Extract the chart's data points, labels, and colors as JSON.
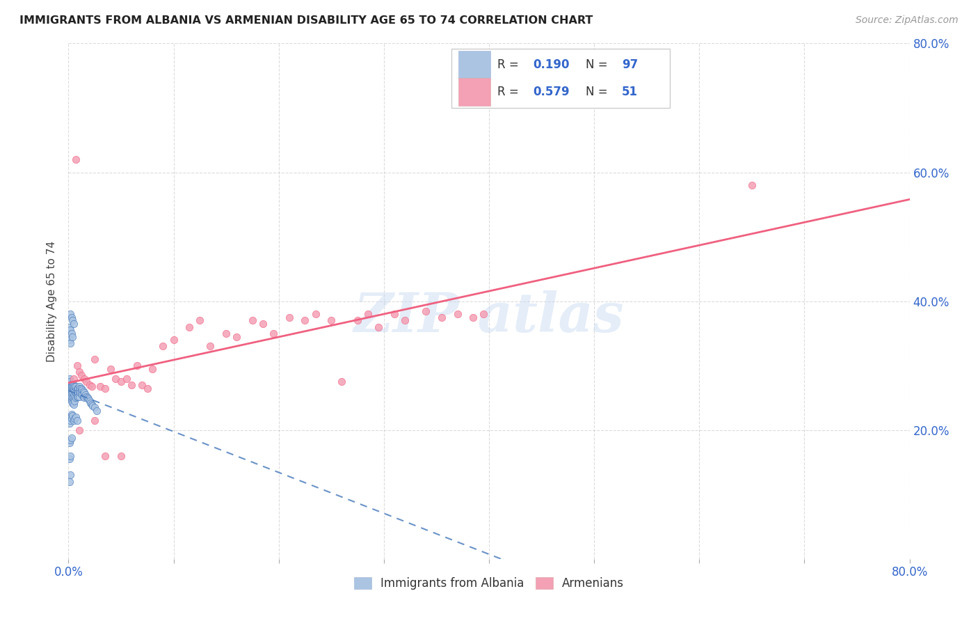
{
  "title": "IMMIGRANTS FROM ALBANIA VS ARMENIAN DISABILITY AGE 65 TO 74 CORRELATION CHART",
  "source": "Source: ZipAtlas.com",
  "ylabel": "Disability Age 65 to 74",
  "xlim": [
    0.0,
    0.8
  ],
  "ylim": [
    0.0,
    0.8
  ],
  "xtick_vals": [
    0.0,
    0.1,
    0.2,
    0.3,
    0.4,
    0.5,
    0.6,
    0.7,
    0.8
  ],
  "xtick_labels_show": {
    "0.0": "0.0%",
    "0.8": "80.0%"
  },
  "ytick_vals": [
    0.2,
    0.4,
    0.6,
    0.8
  ],
  "ytick_labels": [
    "20.0%",
    "40.0%",
    "60.0%",
    "80.0%"
  ],
  "albania_color": "#aac4e2",
  "armenian_color": "#f4a0b5",
  "albania_line_color": "#4477bb",
  "armenian_line_color": "#f06080",
  "tick_label_color": "#3366cc",
  "albania_R": 0.19,
  "albania_N": 97,
  "armenian_R": 0.579,
  "armenian_N": 51,
  "background_color": "#ffffff",
  "grid_color": "#cccccc",
  "albania_x": [
    0.001,
    0.001,
    0.001,
    0.001,
    0.001,
    0.002,
    0.002,
    0.002,
    0.002,
    0.002,
    0.002,
    0.002,
    0.002,
    0.003,
    0.003,
    0.003,
    0.003,
    0.003,
    0.003,
    0.003,
    0.004,
    0.004,
    0.004,
    0.004,
    0.004,
    0.004,
    0.005,
    0.005,
    0.005,
    0.005,
    0.005,
    0.005,
    0.006,
    0.006,
    0.006,
    0.006,
    0.006,
    0.007,
    0.007,
    0.007,
    0.007,
    0.008,
    0.008,
    0.008,
    0.009,
    0.009,
    0.009,
    0.01,
    0.01,
    0.01,
    0.011,
    0.011,
    0.012,
    0.012,
    0.013,
    0.013,
    0.014,
    0.014,
    0.015,
    0.015,
    0.016,
    0.017,
    0.018,
    0.019,
    0.02,
    0.021,
    0.022,
    0.023,
    0.025,
    0.027,
    0.001,
    0.001,
    0.002,
    0.002,
    0.002,
    0.003,
    0.003,
    0.004,
    0.004,
    0.005,
    0.001,
    0.002,
    0.002,
    0.003,
    0.003,
    0.004,
    0.005,
    0.006,
    0.007,
    0.008,
    0.001,
    0.002,
    0.003,
    0.001,
    0.002,
    0.001,
    0.002
  ],
  "albania_y": [
    0.27,
    0.275,
    0.265,
    0.26,
    0.28,
    0.272,
    0.268,
    0.265,
    0.258,
    0.275,
    0.262,
    0.258,
    0.25,
    0.27,
    0.268,
    0.262,
    0.255,
    0.248,
    0.26,
    0.245,
    0.272,
    0.265,
    0.258,
    0.25,
    0.242,
    0.268,
    0.27,
    0.262,
    0.255,
    0.248,
    0.24,
    0.265,
    0.268,
    0.26,
    0.252,
    0.245,
    0.268,
    0.265,
    0.258,
    0.25,
    0.268,
    0.265,
    0.258,
    0.252,
    0.265,
    0.258,
    0.252,
    0.268,
    0.26,
    0.252,
    0.265,
    0.258,
    0.265,
    0.258,
    0.262,
    0.255,
    0.26,
    0.252,
    0.258,
    0.25,
    0.255,
    0.252,
    0.25,
    0.248,
    0.245,
    0.242,
    0.24,
    0.238,
    0.235,
    0.23,
    0.36,
    0.34,
    0.38,
    0.355,
    0.335,
    0.375,
    0.35,
    0.37,
    0.345,
    0.365,
    0.21,
    0.22,
    0.215,
    0.225,
    0.218,
    0.222,
    0.215,
    0.218,
    0.22,
    0.215,
    0.18,
    0.185,
    0.188,
    0.155,
    0.16,
    0.12,
    0.13
  ],
  "armenian_x": [
    0.005,
    0.007,
    0.008,
    0.01,
    0.012,
    0.015,
    0.017,
    0.02,
    0.022,
    0.025,
    0.03,
    0.035,
    0.04,
    0.045,
    0.05,
    0.055,
    0.06,
    0.065,
    0.07,
    0.075,
    0.08,
    0.09,
    0.1,
    0.115,
    0.125,
    0.135,
    0.15,
    0.16,
    0.175,
    0.185,
    0.195,
    0.21,
    0.225,
    0.235,
    0.25,
    0.26,
    0.275,
    0.285,
    0.295,
    0.31,
    0.32,
    0.34,
    0.355,
    0.37,
    0.385,
    0.395,
    0.01,
    0.025,
    0.035,
    0.05,
    0.65
  ],
  "armenian_y": [
    0.28,
    0.62,
    0.3,
    0.29,
    0.285,
    0.28,
    0.275,
    0.27,
    0.268,
    0.31,
    0.268,
    0.265,
    0.295,
    0.28,
    0.275,
    0.28,
    0.27,
    0.3,
    0.27,
    0.265,
    0.295,
    0.33,
    0.34,
    0.36,
    0.37,
    0.33,
    0.35,
    0.345,
    0.37,
    0.365,
    0.35,
    0.375,
    0.37,
    0.38,
    0.37,
    0.275,
    0.37,
    0.38,
    0.36,
    0.38,
    0.37,
    0.385,
    0.375,
    0.38,
    0.375,
    0.38,
    0.2,
    0.215,
    0.16,
    0.16,
    0.58
  ]
}
